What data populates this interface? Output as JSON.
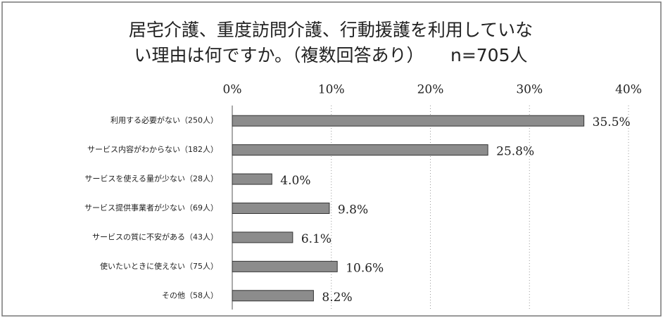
{
  "chart_data": {
    "type": "bar",
    "orientation": "horizontal",
    "title": [
      "居宅介護、重度訪問介護、行動援護を利用していな",
      "い理由は何ですか。（複数回答あり）　　n=705人"
    ],
    "categories": [
      "利用する必要がない（250人）",
      "サービス内容がわからない（182人）",
      "サービスを使える量が少ない（28人）",
      "サービス提供事業者が少ない（69人）",
      "サービスの質に不安がある（43人）",
      "使いたいときに使えない（75人）",
      "その他（58人）"
    ],
    "values": [
      35.5,
      25.8,
      4.0,
      9.8,
      6.1,
      10.6,
      8.2
    ],
    "value_labels": [
      "35.5%",
      "25.8%",
      "4.0%",
      "9.8%",
      "6.1%",
      "10.6%",
      "8.2%"
    ],
    "color": "#8c8c8c",
    "xlim": [
      0,
      40
    ],
    "xticks": [
      {
        "value": 0,
        "label": "0%"
      },
      {
        "value": 10,
        "label": "10%"
      },
      {
        "value": 20,
        "label": "20%"
      },
      {
        "value": 30,
        "label": "30%"
      },
      {
        "value": 40,
        "label": "40%"
      }
    ],
    "grid": true
  }
}
